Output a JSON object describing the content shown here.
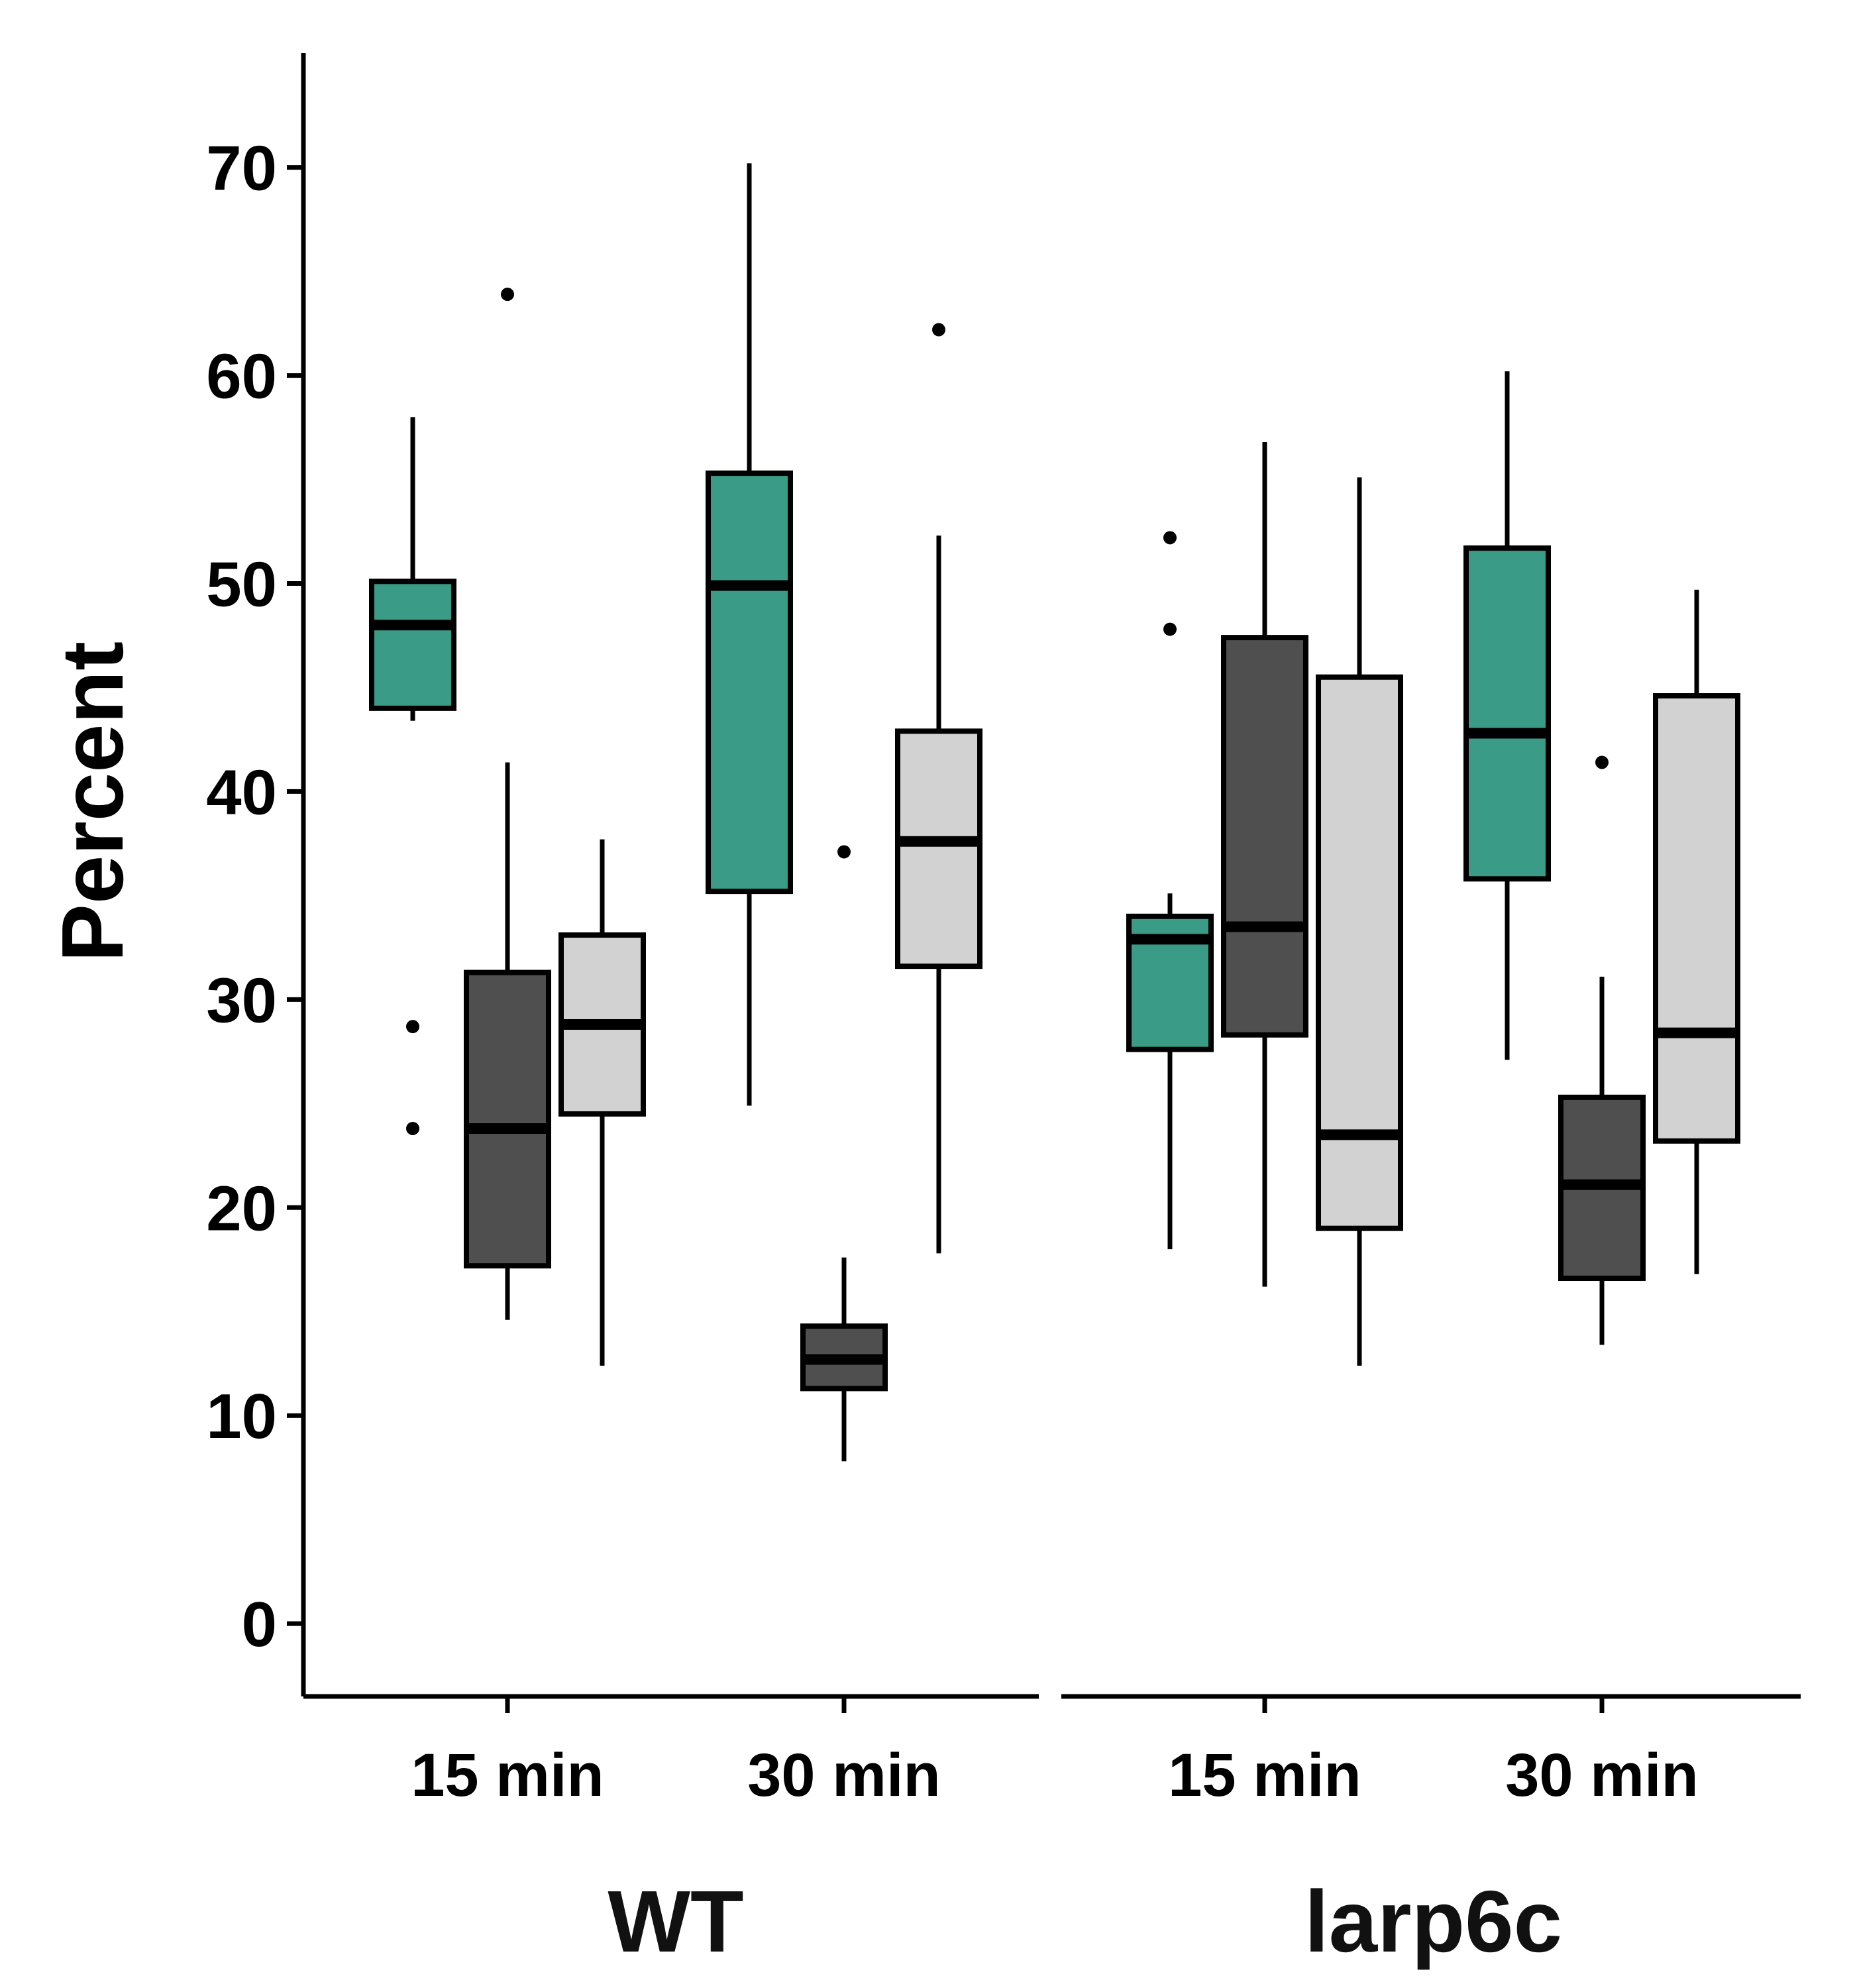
{
  "chart_data": {
    "type": "box",
    "ylabel": "Percent",
    "ylim": [
      -3.5,
      75.5
    ],
    "yticks": [
      0,
      10,
      20,
      30,
      40,
      50,
      60,
      70
    ],
    "grid": false,
    "legend": "none",
    "colors": [
      "#3a9c86",
      "#4f4f4f",
      "#d2d2d2"
    ],
    "panels": [
      {
        "label": "WT",
        "categories": [
          {
            "label": "15 min",
            "boxes": [
              {
                "q1": 44.0,
                "median": 48.0,
                "q3": 50.1,
                "whisker_low": 43.4,
                "whisker_high": 58.0,
                "outliers": [
                  28.7,
                  23.8
                ]
              },
              {
                "q1": 17.2,
                "median": 23.8,
                "q3": 31.3,
                "whisker_low": 14.6,
                "whisker_high": 41.4,
                "outliers": [
                  63.9
                ]
              },
              {
                "q1": 24.5,
                "median": 28.8,
                "q3": 33.1,
                "whisker_low": 12.4,
                "whisker_high": 37.7,
                "outliers": []
              }
            ]
          },
          {
            "label": "30 min",
            "boxes": [
              {
                "q1": 35.2,
                "median": 49.9,
                "q3": 55.3,
                "whisker_low": 24.9,
                "whisker_high": 70.2,
                "outliers": []
              },
              {
                "q1": 11.3,
                "median": 12.7,
                "q3": 14.3,
                "whisker_low": 7.8,
                "whisker_high": 17.6,
                "outliers": [
                  37.1
                ]
              },
              {
                "q1": 31.6,
                "median": 37.6,
                "q3": 42.9,
                "whisker_low": 17.8,
                "whisker_high": 52.3,
                "outliers": [
                  62.2
                ]
              }
            ]
          }
        ]
      },
      {
        "label": "larp6c",
        "categories": [
          {
            "label": "15 min",
            "boxes": [
              {
                "q1": 27.6,
                "median": 32.9,
                "q3": 34.0,
                "whisker_low": 18.0,
                "whisker_high": 35.1,
                "outliers": [
                  52.2,
                  47.8
                ]
              },
              {
                "q1": 28.3,
                "median": 33.5,
                "q3": 47.4,
                "whisker_low": 16.2,
                "whisker_high": 56.8,
                "outliers": []
              },
              {
                "q1": 19.0,
                "median": 23.5,
                "q3": 45.5,
                "whisker_low": 12.4,
                "whisker_high": 55.1,
                "outliers": []
              }
            ]
          },
          {
            "label": "30 min",
            "boxes": [
              {
                "q1": 35.8,
                "median": 42.8,
                "q3": 51.7,
                "whisker_low": 27.1,
                "whisker_high": 60.2,
                "outliers": []
              },
              {
                "q1": 16.6,
                "median": 21.1,
                "q3": 25.3,
                "whisker_low": 13.4,
                "whisker_high": 31.1,
                "outliers": [
                  41.4
                ]
              },
              {
                "q1": 23.2,
                "median": 28.4,
                "q3": 44.6,
                "whisker_low": 16.8,
                "whisker_high": 49.7,
                "outliers": []
              }
            ]
          }
        ]
      }
    ]
  }
}
